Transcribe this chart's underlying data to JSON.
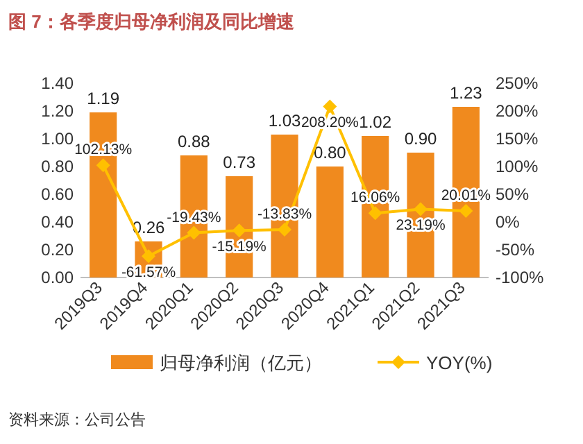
{
  "chart_data": {
    "type": "bar",
    "title": "图 7：各季度归母净利润及同比增速",
    "categories": [
      "2019Q3",
      "2019Q4",
      "2020Q1",
      "2020Q2",
      "2020Q3",
      "2020Q4",
      "2021Q1",
      "2021Q2",
      "2021Q3"
    ],
    "series": [
      {
        "name": "归母净利润（亿元）",
        "color": "#f08a1e",
        "values": [
          1.19,
          0.26,
          0.88,
          0.73,
          1.03,
          0.8,
          1.02,
          0.9,
          1.23
        ],
        "value_labels": [
          "1.19",
          "0.26",
          "0.88",
          "0.73",
          "1.03",
          "0.80",
          "1.02",
          "0.90",
          "1.23"
        ]
      },
      {
        "name": "YOY(%)",
        "type": "line",
        "axis": "y2",
        "color": "#ffc000",
        "marker": "diamond",
        "values": [
          102.13,
          -61.57,
          -19.43,
          -15.19,
          -13.83,
          208.2,
          16.06,
          23.19,
          20.01
        ],
        "value_labels": [
          "102.13%",
          "-61.57%",
          "-19.43%",
          "-15.19%",
          "-13.83%",
          "208.20%",
          "16.06%",
          "23.19%",
          "20.01%"
        ]
      }
    ],
    "ylim": [
      0,
      1.4
    ],
    "yticks": [
      {
        "value": 0,
        "label": "0.00"
      },
      {
        "value": 0.2,
        "label": "0.20"
      },
      {
        "value": 0.4,
        "label": "0.40"
      },
      {
        "value": 0.6,
        "label": "0.60"
      },
      {
        "value": 0.8,
        "label": "0.80"
      },
      {
        "value": 1.0,
        "label": "1.00"
      },
      {
        "value": 1.2,
        "label": "1.20"
      },
      {
        "value": 1.4,
        "label": "1.40"
      }
    ],
    "y2lim": [
      -100,
      250
    ],
    "y2ticks": [
      {
        "value": -100,
        "label": "-100%"
      },
      {
        "value": -50,
        "label": "-50%"
      },
      {
        "value": 0,
        "label": "0%"
      },
      {
        "value": 50,
        "label": "50%"
      },
      {
        "value": 100,
        "label": "100%"
      },
      {
        "value": 150,
        "label": "150%"
      },
      {
        "value": 200,
        "label": "200%"
      },
      {
        "value": 250,
        "label": "250%"
      }
    ],
    "legend": "bottom",
    "annotations": [
      "资料来源：公司公告"
    ]
  }
}
